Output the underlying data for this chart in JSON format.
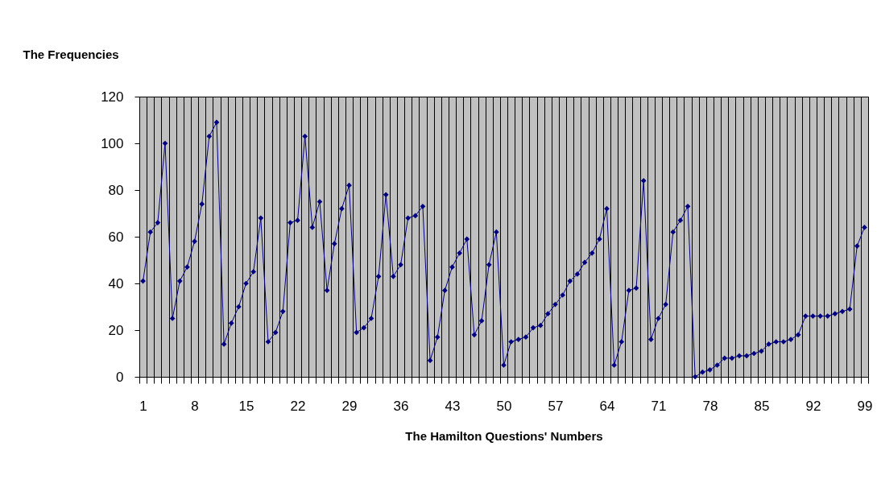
{
  "chart_data": {
    "type": "line",
    "ylabel": "The Frequencies",
    "xlabel": "The Hamilton Questions' Numbers",
    "categories": [
      "1",
      null,
      null,
      null,
      null,
      null,
      null,
      "8",
      null,
      null,
      null,
      null,
      null,
      null,
      "15",
      null,
      null,
      null,
      null,
      null,
      null,
      "22",
      null,
      null,
      null,
      null,
      null,
      null,
      "29",
      null,
      null,
      null,
      null,
      null,
      null,
      "36",
      null,
      null,
      null,
      null,
      null,
      null,
      "43",
      null,
      null,
      null,
      null,
      null,
      null,
      "50",
      null,
      null,
      null,
      null,
      null,
      null,
      "57",
      null,
      null,
      null,
      null,
      null,
      null,
      "64",
      null,
      null,
      null,
      null,
      null,
      null,
      "71",
      null,
      null,
      null,
      null,
      null,
      null,
      "78",
      null,
      null,
      null,
      null,
      null,
      null,
      "85",
      null,
      null,
      null,
      null,
      null,
      null,
      "92",
      null,
      null,
      null,
      null,
      null,
      null,
      "99"
    ],
    "series": [
      {
        "color": "#000080",
        "values": [
          41,
          62,
          66,
          100,
          25,
          41,
          47,
          58,
          74,
          103,
          109,
          14,
          23,
          30,
          40,
          45,
          68,
          15,
          19,
          28,
          66,
          67,
          103,
          64,
          75,
          37,
          57,
          72,
          82,
          19,
          21,
          25,
          43,
          78,
          43,
          48,
          68,
          69,
          73,
          7,
          17,
          37,
          47,
          53,
          59,
          18,
          24,
          48,
          62,
          5,
          15,
          16,
          17,
          21,
          22,
          27,
          31,
          35,
          41,
          44,
          49,
          53,
          59,
          72,
          5,
          15,
          37,
          38,
          84,
          16,
          25,
          31,
          62,
          67,
          73,
          0,
          2,
          3,
          5,
          8,
          8,
          9,
          9,
          10,
          11,
          14,
          15,
          15,
          16,
          18,
          26,
          26,
          26,
          26,
          27,
          28,
          29,
          56,
          64
        ]
      }
    ],
    "ylim": [
      0,
      120
    ],
    "yticks": [
      0,
      20,
      40,
      60,
      80,
      100,
      120
    ],
    "grid": "x",
    "marker": "diamond",
    "line_style": "solid"
  }
}
